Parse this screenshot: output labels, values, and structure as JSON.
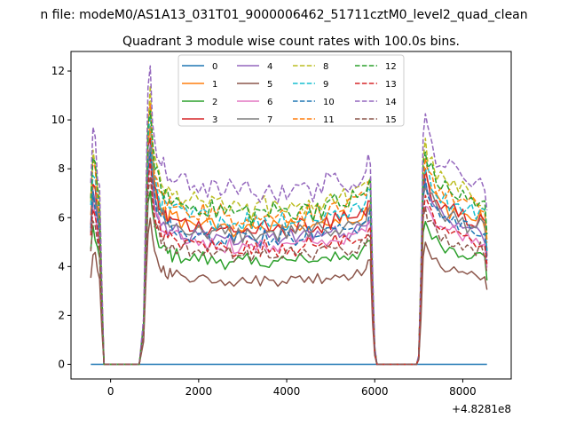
{
  "chart_data": {
    "type": "line",
    "suptitle": "n file: modeM0/AS1A13_031T01_9000006462_51711cztM0_level2_quad_clean",
    "title": "Quadrant 3 module wise count rates with 100.0s bins.",
    "xlabel": "",
    "ylabel": "",
    "offset_label": "+4.8281e8",
    "xlim": [
      -900,
      9100
    ],
    "ylim": [
      -0.6,
      12.8
    ],
    "xticks": [
      0,
      2000,
      4000,
      6000,
      8000
    ],
    "yticks": [
      0,
      2,
      4,
      6,
      8,
      10,
      12
    ],
    "legend_position": "upper center",
    "legend_columns": 4,
    "grid": false,
    "profile": {
      "description": "common time profile; series value = base * profile",
      "x": [
        -450,
        -400,
        -350,
        -300,
        -250,
        -200,
        -150,
        -50,
        50,
        150,
        250,
        350,
        450,
        550,
        650,
        750,
        800,
        850,
        900,
        950,
        1000,
        1050,
        1100,
        1150,
        1200,
        1250,
        1300,
        1350,
        1400,
        1500,
        1600,
        1700,
        1800,
        1900,
        2000,
        2100,
        2200,
        2300,
        2400,
        2500,
        2600,
        2700,
        2800,
        2900,
        3000,
        3100,
        3200,
        3300,
        3400,
        3500,
        3600,
        3700,
        3800,
        3900,
        4000,
        4100,
        4200,
        4300,
        4400,
        4500,
        4600,
        4700,
        4800,
        4900,
        5000,
        5100,
        5200,
        5300,
        5400,
        5500,
        5600,
        5700,
        5800,
        5850,
        5900,
        5950,
        6000,
        6050,
        6100,
        6150,
        6250,
        6350,
        6450,
        6550,
        6650,
        6750,
        6850,
        6950,
        7000,
        7050,
        7100,
        7150,
        7200,
        7300,
        7400,
        7500,
        7600,
        7700,
        7800,
        7900,
        8000,
        8100,
        8200,
        8300,
        8400,
        8500,
        8550
      ],
      "y": [
        1.0,
        1.25,
        1.18,
        1.05,
        0.95,
        0.45,
        0,
        0,
        0,
        0,
        0,
        0,
        0,
        0,
        0,
        0.25,
        0.85,
        1.45,
        1.6,
        1.35,
        1.22,
        1.15,
        1.1,
        1.05,
        1.06,
        1.03,
        1.0,
        1.02,
        0.98,
        1.0,
        0.97,
        0.99,
        0.95,
        0.97,
        0.96,
        0.98,
        0.94,
        0.95,
        0.93,
        0.96,
        0.92,
        0.95,
        0.91,
        0.94,
        0.92,
        0.95,
        0.9,
        0.93,
        0.92,
        0.95,
        0.91,
        0.94,
        0.92,
        0.96,
        0.93,
        0.95,
        0.92,
        0.96,
        0.94,
        0.97,
        0.93,
        0.97,
        0.95,
        0.98,
        0.96,
        1.0,
        0.97,
        1.0,
        0.98,
        1.02,
        1.0,
        1.03,
        1.05,
        1.1,
        1.12,
        0.5,
        0.1,
        0,
        0,
        0,
        0,
        0,
        0,
        0,
        0,
        0,
        0,
        0,
        0.05,
        0.55,
        1.22,
        1.3,
        1.25,
        1.18,
        1.12,
        1.1,
        1.07,
        1.05,
        1.06,
        1.02,
        1.03,
        1.0,
        1.01,
        0.98,
        0.99,
        0.96,
        0.78
      ]
    },
    "series": [
      {
        "name": "0",
        "color": "#1f77b4",
        "dash": false,
        "base": 0
      },
      {
        "name": "1",
        "color": "#ff7f0e",
        "dash": false,
        "base": 6.0
      },
      {
        "name": "2",
        "color": "#2ca02c",
        "dash": false,
        "base": 4.5
      },
      {
        "name": "3",
        "color": "#d62728",
        "dash": false,
        "base": 5.9
      },
      {
        "name": "4",
        "color": "#9467bd",
        "dash": false,
        "base": 5.5
      },
      {
        "name": "5",
        "color": "#8c564b",
        "dash": false,
        "base": 3.7
      },
      {
        "name": "6",
        "color": "#e377c2",
        "dash": false,
        "base": 5.2
      },
      {
        "name": "7",
        "color": "#7f7f7f",
        "dash": false,
        "base": 5.7
      },
      {
        "name": "8",
        "color": "#bcbd22",
        "dash": true,
        "base": 6.9
      },
      {
        "name": "9",
        "color": "#17becf",
        "dash": true,
        "base": 6.3
      },
      {
        "name": "10",
        "color": "#1f77b4",
        "dash": true,
        "base": 5.6
      },
      {
        "name": "11",
        "color": "#ff7f0e",
        "dash": true,
        "base": 6.5
      },
      {
        "name": "12",
        "color": "#2ca02c",
        "dash": true,
        "base": 6.7
      },
      {
        "name": "13",
        "color": "#d62728",
        "dash": true,
        "base": 5.1
      },
      {
        "name": "14",
        "color": "#9467bd",
        "dash": true,
        "base": 7.6
      },
      {
        "name": "15",
        "color": "#8c564b",
        "dash": true,
        "base": 4.8
      }
    ]
  }
}
